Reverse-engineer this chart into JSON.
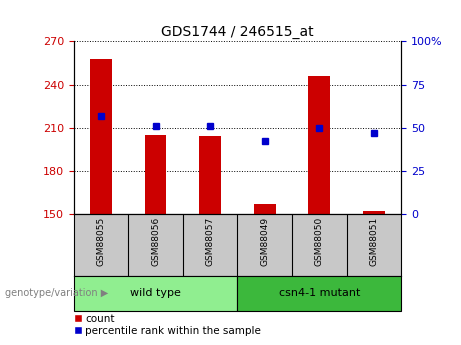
{
  "title": "GDS1744 / 246515_at",
  "samples": [
    "GSM88055",
    "GSM88056",
    "GSM88057",
    "GSM88049",
    "GSM88050",
    "GSM88051"
  ],
  "groups": [
    {
      "name": "wild type",
      "indices": [
        0,
        1,
        2
      ],
      "color": "#90EE90"
    },
    {
      "name": "csn4-1 mutant",
      "indices": [
        3,
        4,
        5
      ],
      "color": "#3CB83C"
    }
  ],
  "counts": [
    258,
    205,
    204,
    157,
    246,
    152
  ],
  "percentile_ranks": [
    57,
    51,
    51,
    42,
    50,
    47
  ],
  "ylim_left": [
    150,
    270
  ],
  "ylim_right": [
    0,
    100
  ],
  "yticks_left": [
    150,
    180,
    210,
    240,
    270
  ],
  "yticks_right": [
    0,
    25,
    50,
    75,
    100
  ],
  "bar_color": "#CC0000",
  "dot_color": "#0000CC",
  "bg_color": "#FFFFFF",
  "label_count": "count",
  "label_percentile": "percentile rank within the sample",
  "genotype_label": "genotype/variation",
  "left_tick_color": "#CC0000",
  "right_tick_color": "#0000CC",
  "cell_bg": "#C8C8C8",
  "bar_width": 0.4
}
